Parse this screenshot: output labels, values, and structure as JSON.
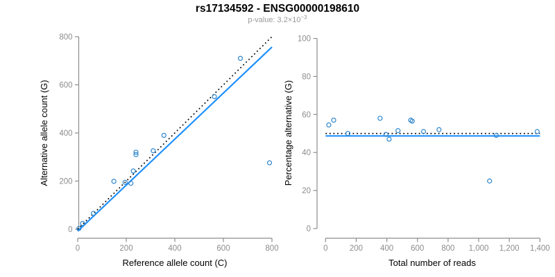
{
  "header": {
    "title": "rs17134592 - ENSG00000198610",
    "pvalue_label": "p-value: 3.2×10",
    "pvalue_exponent": "−3"
  },
  "colors": {
    "point": "#2E86CD",
    "fit_line": "#1E90FF",
    "reference_line": "#000000",
    "axis": "#8c8c8c",
    "tick_label": "#8c8c8c",
    "title": "#000000",
    "subtitle": "#999999"
  },
  "chart_data": [
    {
      "type": "scatter",
      "name": "allele-counts-scatter",
      "xlabel": "Reference allele count (C)",
      "ylabel": "Alternative allele count (G)",
      "xlim": [
        0,
        800
      ],
      "ylim": [
        0,
        800
      ],
      "xticks": [
        0,
        200,
        400,
        600,
        800
      ],
      "xtick_labels": [
        "0",
        "200",
        "400",
        "600",
        "800"
      ],
      "yticks": [
        0,
        200,
        400,
        600,
        800
      ],
      "ytick_labels": [
        "0",
        "200",
        "400",
        "600",
        "800"
      ],
      "grid": false,
      "legend": null,
      "points": [
        [
          5,
          3
        ],
        [
          20,
          24
        ],
        [
          65,
          66
        ],
        [
          149,
          199
        ],
        [
          195,
          195
        ],
        [
          219,
          191
        ],
        [
          229,
          242
        ],
        [
          240,
          310
        ],
        [
          240,
          320
        ],
        [
          311,
          326
        ],
        [
          355,
          390
        ],
        [
          563,
          551
        ],
        [
          670,
          710
        ],
        [
          790,
          276
        ]
      ],
      "lines": [
        {
          "name": "identity-line",
          "style": "dotted",
          "color": "#000000",
          "width": 1.7,
          "from": [
            0,
            0
          ],
          "to": [
            800,
            800
          ]
        },
        {
          "name": "fit-line",
          "style": "solid",
          "color": "#1E90FF",
          "width": 2.2,
          "from": [
            0,
            -8
          ],
          "to": [
            800,
            757
          ]
        }
      ]
    },
    {
      "type": "scatter",
      "name": "percentage-alternative-scatter",
      "xlabel": "Total number of reads",
      "ylabel": "Percentage alternative (G)",
      "xlim": [
        0,
        1400
      ],
      "ylim": [
        0,
        100
      ],
      "xticks": [
        0,
        200,
        400,
        600,
        800,
        1000,
        1200,
        1400
      ],
      "xtick_labels": [
        "0",
        "200",
        "400",
        "600",
        "800",
        "1,000",
        "1,200",
        "1,400"
      ],
      "yticks": [
        0,
        20,
        40,
        60,
        80,
        100
      ],
      "ytick_labels": [
        "0",
        "20",
        "40",
        "60",
        "80",
        "100"
      ],
      "grid": false,
      "legend": null,
      "points": [
        [
          21,
          54.5
        ],
        [
          53,
          57
        ],
        [
          146,
          50
        ],
        [
          356,
          58
        ],
        [
          394,
          49.5
        ],
        [
          415,
          47
        ],
        [
          473,
          51.5
        ],
        [
          556,
          57
        ],
        [
          566,
          56.5
        ],
        [
          640,
          51
        ],
        [
          741,
          52
        ],
        [
          1071,
          25
        ],
        [
          1115,
          49
        ],
        [
          1382,
          51
        ]
      ],
      "lines": [
        {
          "name": "expected-50pct-line",
          "style": "dotted",
          "color": "#000000",
          "width": 1.7,
          "from": [
            0,
            50
          ],
          "to": [
            1400,
            50
          ]
        },
        {
          "name": "fit-line",
          "style": "solid",
          "color": "#1E90FF",
          "width": 2.2,
          "from": [
            0,
            48.7
          ],
          "to": [
            1400,
            48.7
          ]
        }
      ]
    }
  ]
}
